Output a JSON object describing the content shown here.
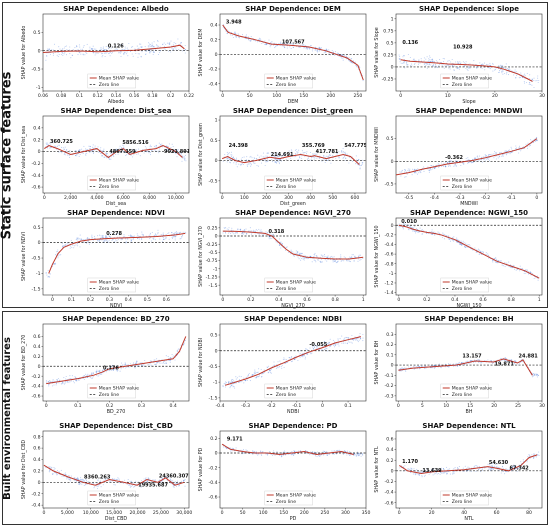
{
  "sections": [
    {
      "label": "Static surface features"
    },
    {
      "label": "Built environmental features"
    }
  ],
  "legend": {
    "mean": "Mean SHAP value",
    "zero": "Zero line"
  },
  "colors": {
    "points": "#3b6fd6",
    "mean": "#c0392b",
    "zero": "#222222"
  },
  "chart_data": [
    {
      "type": "scatter",
      "title": "SHAP Dependence: Albedo",
      "xlabel": "Albedo",
      "ylabel": "SHAP value for Albedo",
      "xlim": [
        0.06,
        0.22
      ],
      "ylim": [
        -1.1,
        1.0
      ],
      "xticks": [
        0.06,
        0.08,
        0.1,
        0.12,
        0.14,
        0.16,
        0.18,
        0.2,
        0.22
      ],
      "yticks": [
        -1.0,
        -0.5,
        0.0,
        0.5
      ],
      "mean_x": [
        0.06,
        0.08,
        0.1,
        0.12,
        0.13,
        0.14,
        0.16,
        0.18,
        0.2,
        0.21,
        0.215
      ],
      "mean_y": [
        -0.05,
        -0.02,
        -0.01,
        -0.03,
        -0.02,
        0.0,
        0.01,
        0.05,
        0.1,
        0.15,
        0.05
      ],
      "spread": 0.35,
      "annotations": [
        {
          "x": 0.13,
          "y": 0.05,
          "text": "0.126"
        }
      ]
    },
    {
      "type": "scatter",
      "title": "SHAP Dependence: DEM",
      "xlabel": "DEM",
      "ylabel": "SHAP value for DEM",
      "xlim": [
        -5,
        265
      ],
      "ylim": [
        -0.5,
        0.55
      ],
      "xticks": [
        0,
        50,
        100,
        150,
        200,
        250
      ],
      "yticks": [
        -0.4,
        -0.2,
        0.0,
        0.2,
        0.4
      ],
      "mean_x": [
        0,
        10,
        30,
        60,
        90,
        110,
        130,
        160,
        190,
        210,
        230,
        250,
        260
      ],
      "mean_y": [
        0.4,
        0.3,
        0.25,
        0.2,
        0.14,
        0.13,
        0.12,
        0.1,
        0.05,
        0.0,
        -0.05,
        -0.15,
        -0.35
      ],
      "spread": 0.15,
      "annotations": [
        {
          "x": 3.948,
          "y": 0.4,
          "text": "3.948"
        },
        {
          "x": 107.567,
          "y": 0.13,
          "text": "107.567"
        }
      ]
    },
    {
      "type": "scatter",
      "title": "SHAP Dependence: Slope",
      "xlabel": "Slope",
      "ylabel": "SHAP value for Slope",
      "xlim": [
        -1,
        30
      ],
      "ylim": [
        -0.5,
        1.1
      ],
      "xticks": [
        0,
        10,
        20,
        30
      ],
      "yticks": [
        -0.25,
        0.0,
        0.25,
        0.5,
        0.75,
        1.0
      ],
      "mean_x": [
        0,
        2,
        5,
        8,
        10,
        13,
        15,
        18,
        20,
        22,
        25,
        27,
        28
      ],
      "mean_y": [
        0.15,
        0.12,
        0.1,
        0.08,
        0.06,
        0.05,
        0.04,
        0.02,
        0.0,
        -0.05,
        -0.15,
        -0.25,
        -0.3
      ],
      "spread": 0.3,
      "annotations": [
        {
          "x": 0.136,
          "y": 0.45,
          "text": "0.136"
        },
        {
          "x": 10.928,
          "y": 0.35,
          "text": "10.928"
        }
      ]
    },
    {
      "type": "scatter",
      "title": "SHAP Dependence: Dist_sea",
      "xlabel": "Dist_sea",
      "ylabel": "SHAP value for Dist_sea",
      "xlim": [
        -100,
        11000
      ],
      "ylim": [
        -0.7,
        0.6
      ],
      "xticks": [
        0,
        2000,
        4000,
        6000,
        8000,
        10000
      ],
      "yticks": [
        -0.6,
        -0.4,
        -0.2,
        0.0,
        0.2,
        0.4
      ],
      "mean_x": [
        0,
        360,
        1000,
        2000,
        3000,
        4000,
        4867,
        5500,
        6000,
        6500,
        7500,
        8500,
        9021,
        10000,
        10500
      ],
      "mean_y": [
        0.05,
        0.1,
        0.05,
        -0.05,
        0.0,
        0.05,
        -0.1,
        0.0,
        0.05,
        -0.05,
        0.02,
        0.05,
        0.1,
        0.0,
        -0.1
      ],
      "spread": 0.25,
      "annotations": [
        {
          "x": 360.725,
          "y": 0.12,
          "text": "360.725"
        },
        {
          "x": 4867.359,
          "y": -0.05,
          "text": "4867.359"
        },
        {
          "x": 5856.516,
          "y": 0.1,
          "text": "5856.516"
        },
        {
          "x": 9021.891,
          "y": -0.05,
          "text": "9021.891"
        }
      ]
    },
    {
      "type": "scatter",
      "title": "SHAP Dependence: Dist_green",
      "xlabel": "Dist_green",
      "ylabel": "SHAP value for Dist_green",
      "xlim": [
        -10,
        650
      ],
      "ylim": [
        -0.8,
        1.1
      ],
      "xticks": [
        0,
        100,
        200,
        300,
        400,
        500,
        600
      ],
      "yticks": [
        -0.5,
        0.0,
        0.5,
        1.0
      ],
      "mean_x": [
        0,
        24,
        60,
        100,
        150,
        214,
        260,
        300,
        355,
        400,
        417,
        470,
        547,
        580,
        620
      ],
      "mean_y": [
        0.05,
        0.1,
        0.0,
        -0.05,
        0.0,
        0.08,
        0.05,
        0.1,
        0.15,
        0.1,
        0.12,
        0.05,
        0.15,
        0.1,
        -0.1
      ],
      "spread": 0.3,
      "annotations": [
        {
          "x": 24.398,
          "y": 0.3,
          "text": "24.398"
        },
        {
          "x": 214.691,
          "y": 0.08,
          "text": "214.691"
        },
        {
          "x": 355.769,
          "y": 0.3,
          "text": "355.769"
        },
        {
          "x": 417.781,
          "y": 0.15,
          "text": "417.781"
        },
        {
          "x": 547.775,
          "y": 0.3,
          "text": "547.775"
        }
      ]
    },
    {
      "type": "scatter",
      "title": "SHAP Dependence: MNDWI",
      "xlabel": "MNDWI",
      "ylabel": "SHAP value for MNDWI",
      "xlim": [
        -0.55,
        0.02
      ],
      "ylim": [
        -0.7,
        1.0
      ],
      "xticks": [
        -0.5,
        -0.4,
        -0.3,
        -0.2,
        -0.1,
        0.0
      ],
      "yticks": [
        -0.5,
        0.0,
        0.5
      ],
      "mean_x": [
        -0.55,
        -0.5,
        -0.45,
        -0.4,
        -0.35,
        -0.3,
        -0.25,
        -0.2,
        -0.15,
        -0.1,
        -0.05,
        0.0
      ],
      "mean_y": [
        -0.3,
        -0.25,
        -0.18,
        -0.12,
        -0.06,
        -0.02,
        0.02,
        0.08,
        0.15,
        0.22,
        0.3,
        0.5
      ],
      "spread": 0.2,
      "annotations": [
        {
          "x": -0.362,
          "y": 0.02,
          "text": "-0.362"
        }
      ]
    },
    {
      "type": "scatter",
      "title": "SHAP Dependence: NDVI",
      "xlabel": "NDVI",
      "ylabel": "SHAP value for NDVI",
      "xlim": [
        -0.05,
        0.72
      ],
      "ylim": [
        -1.7,
        0.8
      ],
      "xticks": [
        0.0,
        0.1,
        0.2,
        0.3,
        0.4,
        0.5,
        0.6
      ],
      "yticks": [
        -1.5,
        -1.0,
        -0.5,
        0.0,
        0.5
      ],
      "mean_x": [
        -0.02,
        0.0,
        0.03,
        0.06,
        0.1,
        0.15,
        0.2,
        0.28,
        0.35,
        0.45,
        0.55,
        0.65,
        0.7
      ],
      "mean_y": [
        -1.0,
        -0.7,
        -0.35,
        -0.15,
        -0.05,
        0.05,
        0.1,
        0.13,
        0.15,
        0.17,
        0.2,
        0.25,
        0.3
      ],
      "spread": 0.25,
      "annotations": [
        {
          "x": 0.278,
          "y": 0.2,
          "text": "0.278"
        }
      ]
    },
    {
      "type": "scatter",
      "title": "SHAP Dependence: NGVI_270",
      "xlabel": "NGVI_270",
      "ylabel": "SHAP value for NGVI_270",
      "xlim": [
        -0.02,
        1.02
      ],
      "ylim": [
        -1.8,
        0.55
      ],
      "xticks": [
        0.0,
        0.2,
        0.4,
        0.6,
        0.8,
        1.0
      ],
      "yticks": [
        -1.5,
        -1.25,
        -1.0,
        -0.75,
        -0.5,
        -0.25,
        0.0,
        0.25
      ],
      "mean_x": [
        0.0,
        0.1,
        0.2,
        0.3,
        0.35,
        0.4,
        0.45,
        0.5,
        0.6,
        0.7,
        0.8,
        0.9,
        1.0
      ],
      "mean_y": [
        0.15,
        0.14,
        0.12,
        0.08,
        0.0,
        -0.2,
        -0.4,
        -0.55,
        -0.65,
        -0.68,
        -0.7,
        -0.7,
        -0.65
      ],
      "spread": 0.2,
      "annotations": [
        {
          "x": 0.318,
          "y": 0.05,
          "text": "0.318"
        }
      ]
    },
    {
      "type": "scatter",
      "title": "SHAP Dependence: NGWI_150",
      "xlabel": "NGWI_150",
      "ylabel": "SHAP value for NGWI_150",
      "xlim": [
        -0.02,
        1.02
      ],
      "ylim": [
        -1.45,
        0.15
      ],
      "xticks": [
        0.0,
        0.2,
        0.4,
        0.6,
        0.8,
        1.0
      ],
      "yticks": [
        -1.4,
        -1.2,
        -1.0,
        -0.8,
        -0.6,
        -0.4,
        -0.2,
        0.0
      ],
      "mean_x": [
        0.0,
        0.05,
        0.1,
        0.15,
        0.2,
        0.25,
        0.3,
        0.4,
        0.5,
        0.6,
        0.7,
        0.8,
        0.9,
        1.0
      ],
      "mean_y": [
        0.0,
        -0.03,
        -0.08,
        -0.12,
        -0.15,
        -0.17,
        -0.2,
        -0.3,
        -0.45,
        -0.6,
        -0.75,
        -0.85,
        -0.95,
        -1.1
      ],
      "spread": 0.15,
      "annotations": [
        {
          "x": 0.01,
          "y": 0.02,
          "text": "0.010"
        }
      ]
    },
    {
      "type": "scatter",
      "title": "SHAP Dependence: BD_270",
      "xlabel": "BD_270",
      "ylabel": "SHAP value for BD_270",
      "xlim": [
        -0.01,
        0.45
      ],
      "ylim": [
        -0.7,
        0.85
      ],
      "xticks": [
        0.0,
        0.1,
        0.2,
        0.3,
        0.4
      ],
      "yticks": [
        -0.6,
        -0.4,
        -0.2,
        0.0,
        0.2,
        0.4,
        0.6
      ],
      "mean_x": [
        0.0,
        0.05,
        0.1,
        0.15,
        0.176,
        0.2,
        0.25,
        0.3,
        0.35,
        0.4,
        0.42,
        0.44
      ],
      "mean_y": [
        -0.35,
        -0.3,
        -0.25,
        -0.18,
        -0.12,
        -0.05,
        0.0,
        0.05,
        0.1,
        0.15,
        0.3,
        0.6
      ],
      "spread": 0.2,
      "annotations": [
        {
          "x": 0.176,
          "y": -0.1,
          "text": "0.176"
        }
      ]
    },
    {
      "type": "scatter",
      "title": "SHAP Dependence: NDBI",
      "xlabel": "NDBI",
      "ylabel": "SHAP value for NDBI",
      "xlim": [
        -0.4,
        0.17
      ],
      "ylim": [
        -1.6,
        0.85
      ],
      "xticks": [
        -0.4,
        -0.3,
        -0.2,
        -0.1,
        0.0,
        0.1
      ],
      "yticks": [
        -1.5,
        -1.0,
        -0.5,
        0.0,
        0.5
      ],
      "mean_x": [
        -0.38,
        -0.3,
        -0.25,
        -0.2,
        -0.15,
        -0.1,
        -0.055,
        0.0,
        0.05,
        0.1,
        0.15
      ],
      "mean_y": [
        -1.1,
        -0.9,
        -0.75,
        -0.55,
        -0.38,
        -0.2,
        -0.05,
        0.1,
        0.25,
        0.35,
        0.45
      ],
      "spread": 0.25,
      "annotations": [
        {
          "x": -0.055,
          "y": 0.1,
          "text": "-0.055"
        }
      ]
    },
    {
      "type": "scatter",
      "title": "SHAP Dependence: BH",
      "xlabel": "BH",
      "ylabel": "SHAP value for BH",
      "xlim": [
        -0.5,
        30
      ],
      "ylim": [
        -0.35,
        0.4
      ],
      "xticks": [
        0,
        5,
        10,
        15,
        20,
        25,
        30
      ],
      "yticks": [
        -0.3,
        -0.2,
        -0.1,
        0.0,
        0.1,
        0.2,
        0.3
      ],
      "mean_x": [
        0,
        3,
        6,
        9,
        12,
        13.157,
        16,
        19.871,
        22,
        24.881,
        26,
        28
      ],
      "mean_y": [
        -0.05,
        -0.03,
        -0.02,
        -0.01,
        0.0,
        0.01,
        0.04,
        0.03,
        0.06,
        0.02,
        0.05,
        -0.1
      ],
      "spread": 0.1,
      "annotations": [
        {
          "x": 13.157,
          "y": 0.06,
          "text": "13.157"
        },
        {
          "x": 19.871,
          "y": -0.02,
          "text": "19.871"
        },
        {
          "x": 24.881,
          "y": 0.06,
          "text": "24.881"
        }
      ]
    },
    {
      "type": "scatter",
      "title": "SHAP Dependence: Dist_CBD",
      "xlabel": "Dist_CBD",
      "ylabel": "SHAP value for Dist_CBD",
      "xlim": [
        -200,
        31000
      ],
      "ylim": [
        -0.45,
        0.9
      ],
      "xticks": [
        0,
        5000,
        10000,
        15000,
        20000,
        25000,
        30000
      ],
      "yticks": [
        -0.4,
        -0.2,
        0.0,
        0.2,
        0.4,
        0.6,
        0.8
      ],
      "mean_x": [
        0,
        2000,
        5000,
        8360,
        11000,
        14000,
        17000,
        19935,
        22000,
        24360,
        26000,
        28000,
        30000
      ],
      "mean_y": [
        0.3,
        0.2,
        0.1,
        0.0,
        -0.05,
        0.05,
        0.0,
        -0.05,
        0.05,
        0.0,
        0.08,
        -0.05,
        0.0
      ],
      "spread": 0.2,
      "annotations": [
        {
          "x": 8360.263,
          "y": 0.04,
          "text": "8360.263"
        },
        {
          "x": 19935.687,
          "y": -0.1,
          "text": "19935.687"
        },
        {
          "x": 24360.307,
          "y": 0.06,
          "text": "24360.307"
        }
      ]
    },
    {
      "type": "scatter",
      "title": "SHAP Dependence: PD",
      "xlabel": "PD",
      "ylabel": "SHAP value for PD",
      "xlim": [
        -5,
        350
      ],
      "ylim": [
        -0.75,
        0.3
      ],
      "xticks": [
        0,
        50,
        100,
        150,
        200,
        250,
        300,
        350
      ],
      "yticks": [
        -0.6,
        -0.4,
        -0.2,
        0.0,
        0.2
      ],
      "mean_x": [
        0,
        20,
        50,
        80,
        110,
        140,
        170,
        200,
        230,
        260,
        290,
        320
      ],
      "mean_y": [
        0.12,
        0.05,
        0.02,
        0.0,
        0.0,
        -0.02,
        0.0,
        0.02,
        -0.02,
        0.0,
        0.02,
        -0.02
      ],
      "spread": 0.12,
      "annotations": [
        {
          "x": 9.171,
          "y": 0.15,
          "text": "9.171"
        }
      ]
    },
    {
      "type": "scatter",
      "title": "SHAP Dependence: NTL",
      "xlabel": "NTL",
      "ylabel": "SHAP value for NTL",
      "xlim": [
        -2,
        88
      ],
      "ylim": [
        -0.7,
        0.75
      ],
      "xticks": [
        0,
        20,
        40,
        60,
        80
      ],
      "yticks": [
        -0.6,
        -0.4,
        -0.2,
        0.0,
        0.2,
        0.4,
        0.6
      ],
      "mean_x": [
        0,
        1.17,
        5,
        13.639,
        20,
        30,
        40,
        54.63,
        60,
        67.342,
        75,
        80,
        85
      ],
      "mean_y": [
        0.1,
        0.08,
        0.0,
        -0.05,
        -0.02,
        0.0,
        0.02,
        0.08,
        0.05,
        0.0,
        0.1,
        0.25,
        0.3
      ],
      "spread": 0.2,
      "annotations": [
        {
          "x": 1.17,
          "y": 0.12,
          "text": "1.170"
        },
        {
          "x": 13.639,
          "y": -0.05,
          "text": "13.639"
        },
        {
          "x": 54.63,
          "y": 0.1,
          "text": "54.630"
        },
        {
          "x": 67.342,
          "y": 0.0,
          "text": "67.342"
        }
      ]
    }
  ]
}
